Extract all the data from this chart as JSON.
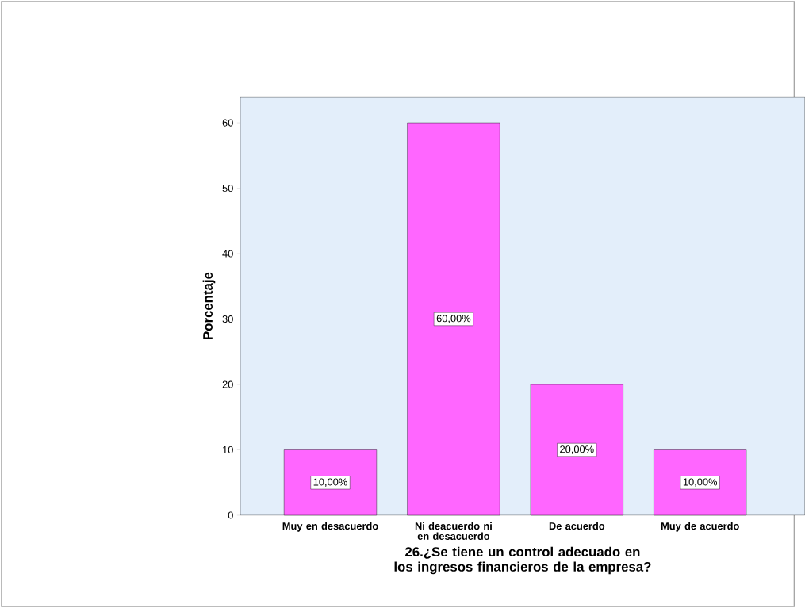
{
  "chart_data": {
    "type": "bar",
    "xlabel": "26.¿Se tiene un control adecuado en los ingresos financieros de la empresa?",
    "ylabel": "Porcentaje",
    "categories": [
      "Muy en desacuerdo",
      "Ni deacuerdo ni en desacuerdo",
      "De acuerdo",
      "Muy de acuerdo"
    ],
    "values": [
      10,
      60,
      20,
      10
    ],
    "value_labels": [
      "10,00%",
      "60,00%",
      "20,00%",
      "10,00%"
    ],
    "color": "#ff66ff",
    "ylim": [
      0,
      64
    ],
    "yticks": [
      0,
      10,
      20,
      30,
      40,
      50,
      60
    ]
  }
}
